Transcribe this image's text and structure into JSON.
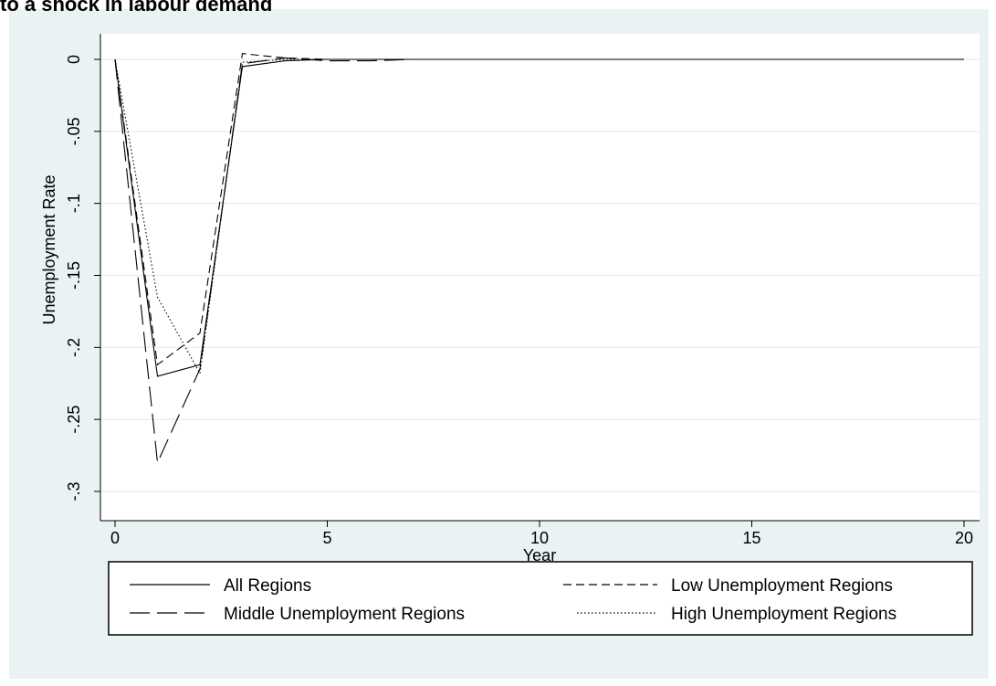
{
  "chart_data": {
    "type": "line",
    "title": "to a shock in labour demand",
    "xlabel": "Year",
    "ylabel": "Unemployment Rate",
    "xlim": [
      0,
      20
    ],
    "ylim": [
      -0.3,
      0
    ],
    "xticks": [
      0,
      5,
      10,
      15,
      20
    ],
    "xtick_labels": [
      "0",
      "5",
      "10",
      "15",
      "20"
    ],
    "yticks": [
      0,
      -0.05,
      -0.1,
      -0.15,
      -0.2,
      -0.25,
      -0.3
    ],
    "ytick_labels": [
      "0",
      "-.05",
      "-.1",
      "-.15",
      "-.2",
      "-.25",
      "-.3"
    ],
    "grid": true,
    "legend_position": "bottom",
    "series": [
      {
        "name": "All Regions",
        "style": "solid",
        "x": [
          0,
          1,
          2,
          3,
          4,
          5,
          6,
          7,
          8,
          9,
          10,
          11,
          12,
          13,
          14,
          15,
          16,
          17,
          18,
          19,
          20
        ],
        "y": [
          0,
          -0.22,
          -0.212,
          -0.005,
          -0.001,
          0,
          0,
          0,
          0,
          0,
          0,
          0,
          0,
          0,
          0,
          0,
          0,
          0,
          0,
          0,
          0
        ]
      },
      {
        "name": "Low Unemployment Regions",
        "style": "short-dash",
        "x": [
          0,
          1,
          2,
          3,
          4,
          5,
          6,
          7,
          8,
          9,
          10,
          11,
          12,
          13,
          14,
          15,
          16,
          17,
          18,
          19,
          20
        ],
        "y": [
          0,
          -0.212,
          -0.19,
          0.004,
          0.001,
          0,
          0,
          0,
          0,
          0,
          0,
          0,
          0,
          0,
          0,
          0,
          0,
          0,
          0,
          0,
          0
        ]
      },
      {
        "name": "Middle Unemployment Regions",
        "style": "long-dash",
        "x": [
          0,
          1,
          2,
          3,
          4,
          5,
          6,
          7,
          8,
          9,
          10,
          11,
          12,
          13,
          14,
          15,
          16,
          17,
          18,
          19,
          20
        ],
        "y": [
          0,
          -0.28,
          -0.215,
          -0.003,
          0.001,
          -0.001,
          -0.001,
          0,
          0,
          0,
          0,
          0,
          0,
          0,
          0,
          0,
          0,
          0,
          0,
          0,
          0
        ]
      },
      {
        "name": "High Unemployment Regions",
        "style": "dotted",
        "x": [
          0,
          1,
          2,
          3,
          4,
          5,
          6,
          7,
          8,
          9,
          10,
          11,
          12,
          13,
          14,
          15,
          16,
          17,
          18,
          19,
          20
        ],
        "y": [
          0,
          -0.165,
          -0.218,
          -0.002,
          0,
          0,
          0,
          0,
          0,
          0,
          0,
          0,
          0,
          0,
          0,
          0,
          0,
          0,
          0,
          0,
          0
        ]
      }
    ]
  }
}
